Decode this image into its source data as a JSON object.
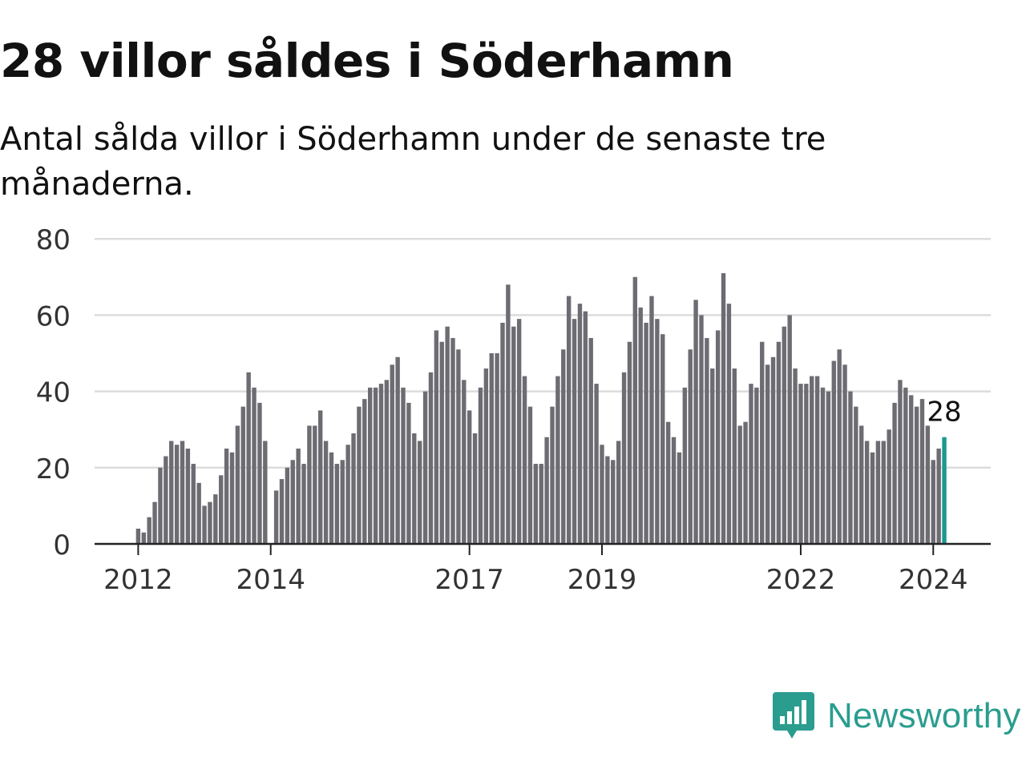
{
  "title": "28 villor såldes i Söderhamn",
  "subtitle": "Antal sålda villor i Söderhamn under de senaste tre månaderna.",
  "brand": {
    "name": "Newsworthy",
    "icon": "newsworthy-logo-icon",
    "color": "#2a9d8f"
  },
  "colors": {
    "bar": "#6d6c72",
    "highlight": "#1a9a8c",
    "grid": "#dcdcdc",
    "axis": "#222222"
  },
  "chart_data": {
    "type": "bar",
    "title": "28 villor såldes i Söderhamn",
    "subtitle": "Antal sålda villor i Söderhamn under de senaste tre månaderna.",
    "xlabel": "",
    "ylabel": "",
    "ylim": [
      0,
      80
    ],
    "yticks": [
      0,
      20,
      40,
      60,
      80
    ],
    "xticks": [
      "2012",
      "2014",
      "2017",
      "2019",
      "2022",
      "2024"
    ],
    "grid": true,
    "start": "2012-01",
    "values": [
      4,
      3,
      7,
      11,
      20,
      23,
      27,
      26,
      27,
      25,
      21,
      16,
      10,
      11,
      13,
      18,
      25,
      24,
      31,
      36,
      45,
      41,
      37,
      27,
      null,
      14,
      17,
      20,
      22,
      25,
      21,
      31,
      31,
      35,
      27,
      24,
      21,
      22,
      26,
      29,
      36,
      38,
      41,
      41,
      42,
      43,
      47,
      49,
      41,
      37,
      29,
      27,
      40,
      45,
      56,
      53,
      57,
      54,
      51,
      43,
      35,
      29,
      41,
      46,
      50,
      50,
      58,
      68,
      57,
      59,
      44,
      36,
      21,
      21,
      28,
      36,
      44,
      51,
      65,
      59,
      63,
      61,
      54,
      42,
      26,
      23,
      22,
      27,
      45,
      53,
      70,
      62,
      58,
      65,
      59,
      55,
      32,
      28,
      24,
      41,
      51,
      64,
      60,
      54,
      46,
      56,
      71,
      63,
      46,
      31,
      32,
      42,
      41,
      53,
      47,
      49,
      53,
      57,
      60,
      46,
      42,
      42,
      44,
      44,
      41,
      40,
      48,
      51,
      47,
      40,
      36,
      31,
      27,
      24,
      27,
      27,
      30,
      37,
      43,
      41,
      39,
      36,
      38,
      31,
      22,
      25,
      28
    ],
    "highlight": {
      "label": "28",
      "value": 28,
      "period": "2024-03"
    }
  }
}
